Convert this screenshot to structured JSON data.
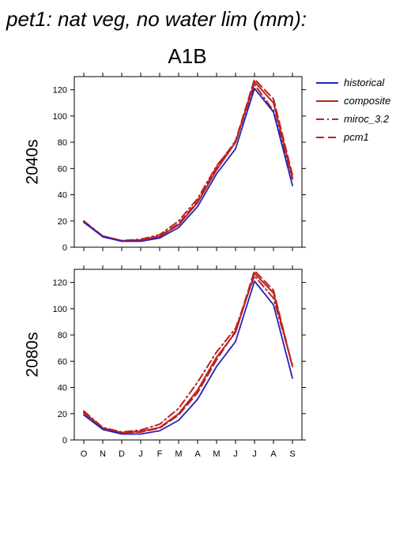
{
  "page_title": "pet1: nat veg, no water lim (mm):",
  "scenario": "A1B",
  "legend": [
    {
      "name": "historical",
      "color": "#2222bb",
      "dash": "solid"
    },
    {
      "name": "composite",
      "color": "#bb2222",
      "dash": "solid"
    },
    {
      "name": "miroc_3.2",
      "color": "#bb2222",
      "dash": "dashdot"
    },
    {
      "name": "pcm1",
      "color": "#bb2222",
      "dash": "dashed"
    }
  ],
  "chart_data": [
    {
      "type": "line",
      "ylabel": "2040s",
      "categories": [
        "O",
        "N",
        "D",
        "J",
        "F",
        "M",
        "A",
        "M",
        "J",
        "J",
        "A",
        "S"
      ],
      "ylim": [
        0,
        130
      ],
      "yticks": [
        0,
        20,
        40,
        60,
        80,
        100,
        120
      ],
      "show_x_tick_labels": false,
      "series": [
        {
          "name": "historical",
          "values": [
            19,
            8,
            4.5,
            4.5,
            7,
            15,
            31,
            56,
            75,
            121,
            103,
            47
          ]
        },
        {
          "name": "composite",
          "values": [
            19.5,
            8.5,
            5,
            5.5,
            8,
            17,
            34,
            59,
            80,
            126,
            110,
            53
          ]
        },
        {
          "name": "miroc_3.2",
          "values": [
            20,
            8.5,
            5,
            6,
            9.5,
            20,
            37,
            62,
            80,
            124,
            104,
            52
          ]
        },
        {
          "name": "pcm1",
          "values": [
            19.5,
            8,
            5,
            5.5,
            8.5,
            18,
            35,
            61,
            81,
            128,
            113,
            55
          ]
        }
      ]
    },
    {
      "type": "line",
      "ylabel": "2080s",
      "categories": [
        "O",
        "N",
        "D",
        "J",
        "F",
        "M",
        "A",
        "M",
        "J",
        "J",
        "A",
        "S"
      ],
      "ylim": [
        0,
        130
      ],
      "yticks": [
        0,
        20,
        40,
        60,
        80,
        100,
        120
      ],
      "show_x_tick_labels": true,
      "series": [
        {
          "name": "historical",
          "values": [
            19,
            8,
            4.5,
            4.5,
            7,
            15,
            31,
            56,
            75,
            121,
            103,
            47
          ]
        },
        {
          "name": "composite",
          "values": [
            21,
            9,
            5.5,
            6.5,
            9.5,
            20,
            38,
            63,
            82,
            127,
            112,
            56
          ]
        },
        {
          "name": "miroc_3.2",
          "values": [
            22,
            9.5,
            6,
            7.5,
            12,
            24,
            44,
            67,
            85,
            125,
            108,
            57
          ]
        },
        {
          "name": "pcm1",
          "values": [
            20.5,
            8.5,
            5.5,
            6,
            9,
            19,
            36,
            61,
            83,
            129,
            114,
            56
          ]
        }
      ]
    }
  ]
}
